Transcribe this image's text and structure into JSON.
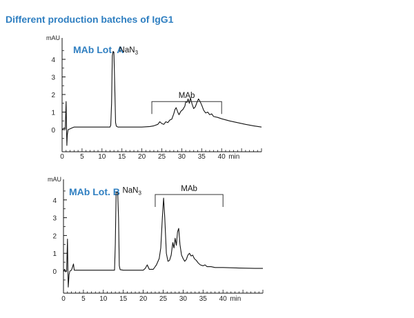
{
  "figure_title": "Different production batches of IgG1",
  "chart_data": [
    {
      "type": "line",
      "lot_label": "MAb Lot. A",
      "ylabel": "mAU",
      "xlabel": "min",
      "xlim": [
        0,
        50
      ],
      "ylim": [
        -1,
        5
      ],
      "xticks": [
        0,
        5,
        10,
        15,
        20,
        25,
        30,
        35,
        40
      ],
      "yticks": [
        0,
        1,
        2,
        3,
        4
      ],
      "annotations": [
        {
          "label": "NaN",
          "subscript": "3",
          "x": 12.9,
          "y": 4.4
        },
        {
          "label": "MAb",
          "bracket": [
            22.5,
            40
          ],
          "y": 1.6
        }
      ],
      "series": [
        {
          "name": "MAb Lot. A",
          "points": [
            [
              0,
              0
            ],
            [
              0.5,
              0.1
            ],
            [
              0.8,
              0.05
            ],
            [
              1.0,
              1.6
            ],
            [
              1.1,
              0.2
            ],
            [
              1.2,
              -0.9
            ],
            [
              1.3,
              -0.3
            ],
            [
              1.5,
              0
            ],
            [
              2,
              0.05
            ],
            [
              2.5,
              0.1
            ],
            [
              3,
              0.15
            ],
            [
              4,
              0.15
            ],
            [
              10,
              0.15
            ],
            [
              12,
              0.15
            ],
            [
              12.2,
              0.25
            ],
            [
              12.4,
              1.5
            ],
            [
              12.6,
              4.2
            ],
            [
              12.8,
              4.45
            ],
            [
              13.0,
              4.4
            ],
            [
              13.2,
              2.5
            ],
            [
              13.4,
              0.4
            ],
            [
              13.6,
              0.2
            ],
            [
              14,
              0.15
            ],
            [
              20,
              0.15
            ],
            [
              22,
              0.18
            ],
            [
              23,
              0.22
            ],
            [
              24,
              0.3
            ],
            [
              24.5,
              0.45
            ],
            [
              25,
              0.35
            ],
            [
              25.5,
              0.3
            ],
            [
              26,
              0.45
            ],
            [
              26.5,
              0.4
            ],
            [
              27,
              0.55
            ],
            [
              27.5,
              0.6
            ],
            [
              28,
              0.9
            ],
            [
              28.3,
              1.15
            ],
            [
              28.6,
              1.25
            ],
            [
              29,
              1.0
            ],
            [
              29.3,
              0.85
            ],
            [
              29.8,
              1.05
            ],
            [
              30.3,
              1.15
            ],
            [
              30.8,
              1.35
            ],
            [
              31,
              1.6
            ],
            [
              31.3,
              1.55
            ],
            [
              31.6,
              1.75
            ],
            [
              31.9,
              1.5
            ],
            [
              32.2,
              1.8
            ],
            [
              32.6,
              1.45
            ],
            [
              33,
              1.2
            ],
            [
              33.4,
              1.3
            ],
            [
              33.8,
              1.55
            ],
            [
              34.2,
              1.75
            ],
            [
              34.6,
              1.6
            ],
            [
              35,
              1.4
            ],
            [
              35.5,
              1.1
            ],
            [
              36,
              0.95
            ],
            [
              36.5,
              1.0
            ],
            [
              37,
              0.85
            ],
            [
              37.5,
              0.9
            ],
            [
              38,
              0.75
            ],
            [
              39,
              0.7
            ],
            [
              40,
              0.62
            ],
            [
              42,
              0.5
            ],
            [
              44,
              0.4
            ],
            [
              46,
              0.3
            ],
            [
              48,
              0.22
            ],
            [
              50,
              0.15
            ]
          ]
        }
      ]
    },
    {
      "type": "line",
      "lot_label": "MAb Lot. B",
      "ylabel": "mAU",
      "xlabel": "min",
      "xlim": [
        0,
        50
      ],
      "ylim": [
        -1,
        5
      ],
      "xticks": [
        0,
        5,
        10,
        15,
        20,
        25,
        30,
        35,
        40
      ],
      "yticks": [
        0,
        1,
        2,
        3,
        4
      ],
      "annotations": [
        {
          "label": "NaN",
          "subscript": "3",
          "x": 13.4,
          "y": 4.4
        },
        {
          "label": "MAb",
          "bracket": [
            23,
            40
          ],
          "y": 4.3
        }
      ],
      "series": [
        {
          "name": "MAb Lot. B",
          "points": [
            [
              0,
              0
            ],
            [
              0.3,
              0.1
            ],
            [
              0.6,
              -0.05
            ],
            [
              0.8,
              0.05
            ],
            [
              1.0,
              1.8
            ],
            [
              1.1,
              0.1
            ],
            [
              1.2,
              -0.9
            ],
            [
              1.4,
              -0.2
            ],
            [
              1.6,
              0
            ],
            [
              2,
              0.05
            ],
            [
              2.5,
              0.4
            ],
            [
              2.7,
              0.05
            ],
            [
              3,
              0.05
            ],
            [
              5,
              0.05
            ],
            [
              10,
              0.05
            ],
            [
              12.8,
              0.05
            ],
            [
              13.0,
              1.5
            ],
            [
              13.2,
              4.4
            ],
            [
              13.4,
              4.45
            ],
            [
              13.6,
              4.4
            ],
            [
              13.8,
              3.0
            ],
            [
              14.0,
              0.3
            ],
            [
              14.2,
              0.08
            ],
            [
              15,
              0.05
            ],
            [
              20,
              0.05
            ],
            [
              20.5,
              0.15
            ],
            [
              21,
              0.35
            ],
            [
              21.5,
              0.1
            ],
            [
              22,
              0.1
            ],
            [
              22.5,
              0.1
            ],
            [
              23,
              0.25
            ],
            [
              23.3,
              0.35
            ],
            [
              23.6,
              0.5
            ],
            [
              24,
              0.7
            ],
            [
              24.4,
              1.3
            ],
            [
              24.8,
              3.0
            ],
            [
              25.1,
              4.1
            ],
            [
              25.4,
              3.0
            ],
            [
              25.8,
              1.0
            ],
            [
              26.2,
              0.55
            ],
            [
              26.6,
              0.6
            ],
            [
              27,
              0.9
            ],
            [
              27.4,
              1.6
            ],
            [
              27.7,
              1.3
            ],
            [
              28,
              1.85
            ],
            [
              28.3,
              1.45
            ],
            [
              28.6,
              2.2
            ],
            [
              28.9,
              2.4
            ],
            [
              29.2,
              1.5
            ],
            [
              29.6,
              0.9
            ],
            [
              30,
              0.7
            ],
            [
              30.4,
              0.55
            ],
            [
              30.8,
              0.65
            ],
            [
              31.2,
              0.9
            ],
            [
              31.6,
              1.0
            ],
            [
              32,
              0.85
            ],
            [
              32.4,
              0.9
            ],
            [
              32.8,
              0.7
            ],
            [
              33.3,
              0.6
            ],
            [
              33.8,
              0.45
            ],
            [
              34.3,
              0.35
            ],
            [
              35,
              0.3
            ],
            [
              35.5,
              0.35
            ],
            [
              36,
              0.25
            ],
            [
              37,
              0.25
            ],
            [
              38,
              0.2
            ],
            [
              40,
              0.2
            ],
            [
              44,
              0.17
            ],
            [
              48,
              0.15
            ],
            [
              50,
              0.15
            ]
          ]
        }
      ]
    }
  ]
}
